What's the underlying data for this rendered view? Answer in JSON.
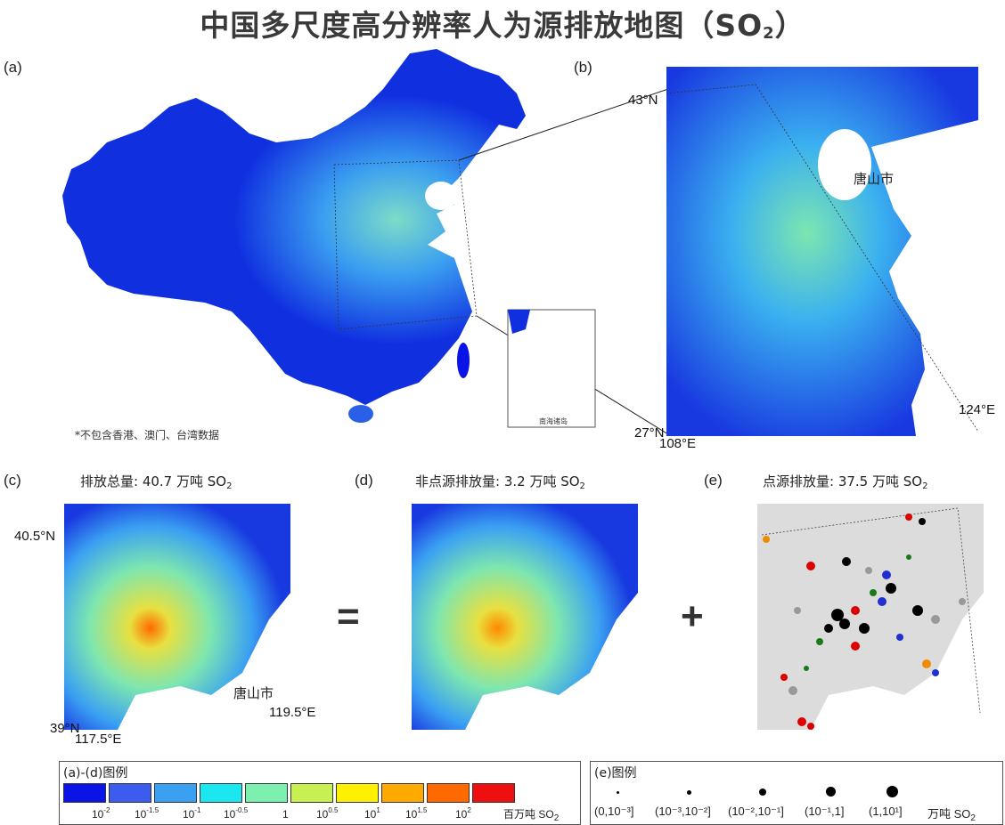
{
  "title": "中国多尺度高分辨率人为源排放地图（SO",
  "title_sub": "2",
  "title_end": "）",
  "panels": {
    "a": {
      "label": "(a)",
      "note": "*不包含香港、澳门、台湾数据",
      "inset_label": "南海诸岛"
    },
    "b": {
      "label": "(b)",
      "city": "唐山市",
      "lat_top": "43°N",
      "lat_bottom": "27°N",
      "lon_left": "108°E",
      "lon_right": "124°E"
    },
    "c": {
      "label": "(c)",
      "caption_pre": "排放总量: 40.7 万吨 SO",
      "caption_sub": "2",
      "lat_top": "40.5°N",
      "lat_bottom": "39°N",
      "lon_left": "117.5°E",
      "lon_right": "119.5°E",
      "city": "唐山市"
    },
    "d": {
      "label": "(d)",
      "caption_pre": "非点源排放量:  3.2  万吨  SO",
      "caption_sub": "2"
    },
    "e": {
      "label": "(e)",
      "caption_pre": "点源排放量: 37.5 万吨 SO",
      "caption_sub": "2"
    }
  },
  "operators": {
    "equals": "=",
    "plus": "+"
  },
  "legend_ad": {
    "title": "(a)-(d)图例",
    "colors": [
      "#0a14e6",
      "#3c5cf0",
      "#3aa0f2",
      "#1ce6f0",
      "#7df0b0",
      "#c8f050",
      "#fff000",
      "#ffaa00",
      "#ff6a00",
      "#ee1010"
    ],
    "ticks": [
      {
        "base": "10",
        "exp": "-2"
      },
      {
        "base": "10",
        "exp": "-1.5"
      },
      {
        "base": "10",
        "exp": "-1"
      },
      {
        "base": "10",
        "exp": "-0.5"
      },
      {
        "base": "1",
        "exp": ""
      },
      {
        "base": "10",
        "exp": "0.5"
      },
      {
        "base": "10",
        "exp": "1"
      },
      {
        "base": "10",
        "exp": "1.5"
      },
      {
        "base": "10",
        "exp": "2"
      }
    ],
    "unit_pre": "百万吨  SO",
    "unit_sub": "2"
  },
  "legend_e": {
    "title": "(e)图例",
    "ranges": [
      "(0,10⁻³]",
      "(10⁻³,10⁻²]",
      "(10⁻²,10⁻¹]",
      "(10⁻¹,1]",
      "(1,10¹]"
    ],
    "unit_pre": "万吨 SO",
    "unit_sub": "2"
  }
}
